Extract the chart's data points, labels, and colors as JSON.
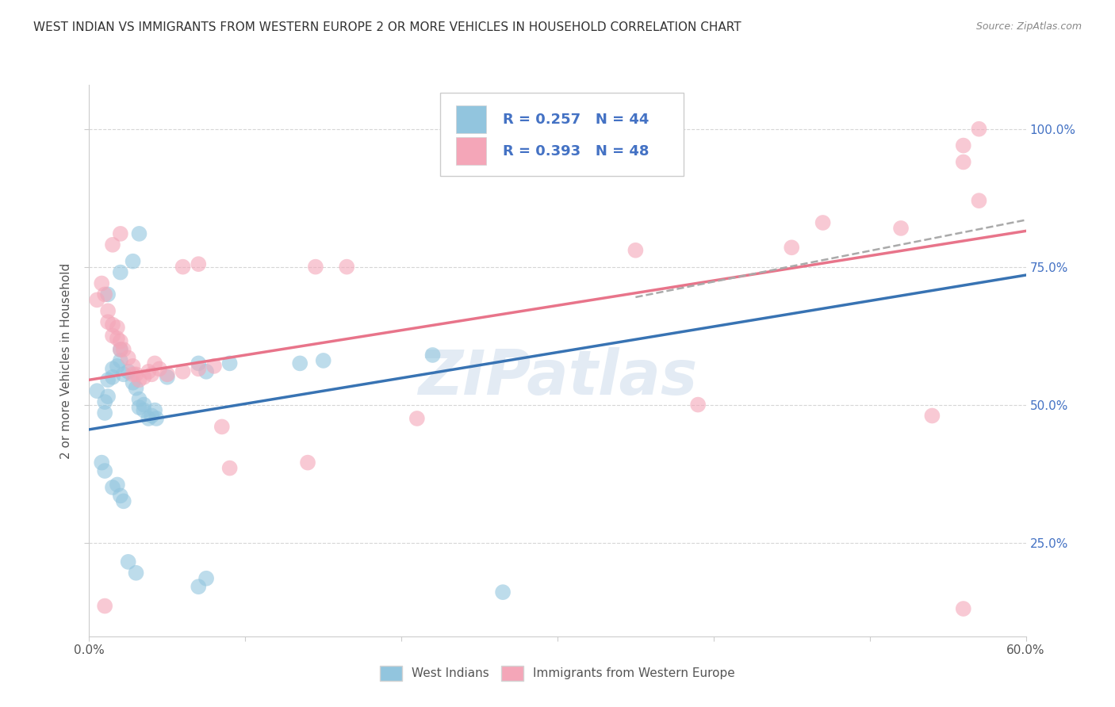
{
  "title": "WEST INDIAN VS IMMIGRANTS FROM WESTERN EUROPE 2 OR MORE VEHICLES IN HOUSEHOLD CORRELATION CHART",
  "source": "Source: ZipAtlas.com",
  "ylabel": "2 or more Vehicles in Household",
  "ytick_labels": [
    "25.0%",
    "50.0%",
    "75.0%",
    "100.0%"
  ],
  "ytick_values": [
    0.25,
    0.5,
    0.75,
    1.0
  ],
  "xlim": [
    0.0,
    0.6
  ],
  "ylim": [
    0.08,
    1.08
  ],
  "legend_label1": "West Indians",
  "legend_label2": "Immigrants from Western Europe",
  "R1": "0.257",
  "N1": "44",
  "R2": "0.393",
  "N2": "48",
  "blue_color": "#92c5de",
  "pink_color": "#f4a6b8",
  "blue_line_color": "#3873b3",
  "pink_line_color": "#e8748a",
  "gray_dash_color": "#aaaaaa",
  "blue_scatter": [
    [
      0.005,
      0.525
    ],
    [
      0.01,
      0.505
    ],
    [
      0.01,
      0.485
    ],
    [
      0.012,
      0.545
    ],
    [
      0.012,
      0.515
    ],
    [
      0.015,
      0.565
    ],
    [
      0.015,
      0.55
    ],
    [
      0.018,
      0.57
    ],
    [
      0.02,
      0.6
    ],
    [
      0.02,
      0.58
    ],
    [
      0.022,
      0.555
    ],
    [
      0.025,
      0.56
    ],
    [
      0.028,
      0.54
    ],
    [
      0.03,
      0.53
    ],
    [
      0.032,
      0.51
    ],
    [
      0.032,
      0.495
    ],
    [
      0.035,
      0.49
    ],
    [
      0.035,
      0.5
    ],
    [
      0.038,
      0.475
    ],
    [
      0.04,
      0.48
    ],
    [
      0.042,
      0.49
    ],
    [
      0.043,
      0.475
    ],
    [
      0.02,
      0.74
    ],
    [
      0.028,
      0.76
    ],
    [
      0.032,
      0.81
    ],
    [
      0.012,
      0.7
    ],
    [
      0.05,
      0.55
    ],
    [
      0.07,
      0.575
    ],
    [
      0.075,
      0.56
    ],
    [
      0.09,
      0.575
    ],
    [
      0.135,
      0.575
    ],
    [
      0.15,
      0.58
    ],
    [
      0.22,
      0.59
    ],
    [
      0.008,
      0.395
    ],
    [
      0.01,
      0.38
    ],
    [
      0.015,
      0.35
    ],
    [
      0.018,
      0.355
    ],
    [
      0.02,
      0.335
    ],
    [
      0.022,
      0.325
    ],
    [
      0.025,
      0.215
    ],
    [
      0.03,
      0.195
    ],
    [
      0.07,
      0.17
    ],
    [
      0.075,
      0.185
    ],
    [
      0.265,
      0.16
    ]
  ],
  "pink_scatter": [
    [
      0.005,
      0.69
    ],
    [
      0.008,
      0.72
    ],
    [
      0.01,
      0.7
    ],
    [
      0.012,
      0.67
    ],
    [
      0.012,
      0.65
    ],
    [
      0.015,
      0.645
    ],
    [
      0.015,
      0.625
    ],
    [
      0.018,
      0.64
    ],
    [
      0.018,
      0.62
    ],
    [
      0.02,
      0.615
    ],
    [
      0.02,
      0.6
    ],
    [
      0.022,
      0.6
    ],
    [
      0.025,
      0.585
    ],
    [
      0.028,
      0.57
    ],
    [
      0.028,
      0.555
    ],
    [
      0.03,
      0.555
    ],
    [
      0.032,
      0.545
    ],
    [
      0.035,
      0.55
    ],
    [
      0.038,
      0.56
    ],
    [
      0.04,
      0.555
    ],
    [
      0.042,
      0.575
    ],
    [
      0.045,
      0.565
    ],
    [
      0.05,
      0.555
    ],
    [
      0.06,
      0.56
    ],
    [
      0.07,
      0.565
    ],
    [
      0.08,
      0.57
    ],
    [
      0.015,
      0.79
    ],
    [
      0.02,
      0.81
    ],
    [
      0.06,
      0.75
    ],
    [
      0.07,
      0.755
    ],
    [
      0.145,
      0.75
    ],
    [
      0.165,
      0.75
    ],
    [
      0.35,
      0.78
    ],
    [
      0.45,
      0.785
    ],
    [
      0.47,
      0.83
    ],
    [
      0.52,
      0.82
    ],
    [
      0.01,
      0.135
    ],
    [
      0.14,
      0.395
    ],
    [
      0.09,
      0.385
    ],
    [
      0.085,
      0.46
    ],
    [
      0.21,
      0.475
    ],
    [
      0.39,
      0.5
    ],
    [
      0.54,
      0.48
    ],
    [
      0.56,
      0.97
    ],
    [
      0.56,
      0.94
    ],
    [
      0.57,
      1.0
    ],
    [
      0.57,
      0.87
    ],
    [
      0.56,
      0.13
    ]
  ],
  "blue_line": [
    [
      0.0,
      0.455
    ],
    [
      0.6,
      0.735
    ]
  ],
  "pink_line": [
    [
      0.0,
      0.545
    ],
    [
      0.6,
      0.815
    ]
  ],
  "gray_dash_line": [
    [
      0.35,
      0.695
    ],
    [
      0.6,
      0.835
    ]
  ],
  "watermark": "ZIPatlas",
  "background_color": "#ffffff",
  "grid_color": "#cccccc"
}
